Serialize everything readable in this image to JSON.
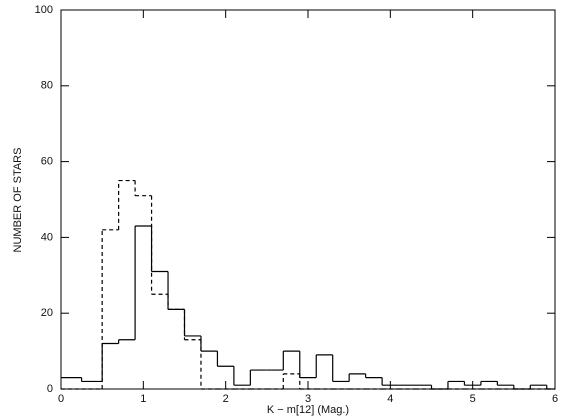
{
  "chart_data": {
    "type": "histogram",
    "xlabel": "K − m[12] (Mag.)",
    "ylabel": "NUMBER OF STARS",
    "bins": [
      0,
      0.25,
      0.5,
      0.7,
      0.9,
      1.1,
      1.3,
      1.5,
      1.7,
      1.9,
      2.1,
      2.3,
      2.5,
      2.7,
      2.9,
      3.1,
      3.3,
      3.5,
      3.7,
      3.9,
      4.1,
      4.3,
      4.5,
      4.7,
      4.9,
      5.1,
      5.3,
      5.5,
      5.7,
      5.9,
      6.0
    ],
    "series": [
      {
        "name": "solid",
        "color": "#000000",
        "dashed": false,
        "values": [
          3,
          2,
          12,
          13,
          43,
          31,
          21,
          14,
          10,
          6,
          1,
          5,
          5,
          10,
          3,
          9,
          2,
          4,
          3,
          1,
          1,
          1,
          0,
          2,
          1,
          2,
          1,
          0,
          1,
          0
        ]
      },
      {
        "name": "dashed",
        "color": "#000000",
        "dashed": true,
        "values": [
          0,
          0,
          42,
          55,
          51,
          25,
          21,
          13,
          0,
          0,
          0,
          0,
          0,
          4,
          0,
          0,
          0,
          0,
          0,
          0,
          0,
          0,
          0,
          0,
          0,
          0,
          0,
          0,
          0,
          0
        ]
      }
    ],
    "xlim": [
      0,
      6
    ],
    "xticks": [
      0,
      1,
      2,
      3,
      4,
      5,
      6
    ],
    "ylim": [
      0,
      100
    ],
    "yticks": [
      0,
      20,
      40,
      60,
      80,
      100
    ]
  }
}
